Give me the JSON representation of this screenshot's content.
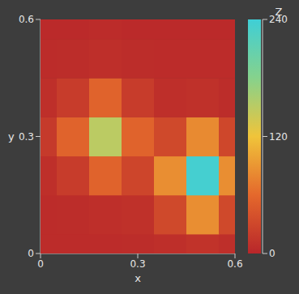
{
  "chart_data": {
    "type": "heatmap",
    "x_label": "x",
    "y_label": "y",
    "x": [
      0,
      0.1,
      0.2,
      0.3,
      0.4,
      0.5,
      0.6
    ],
    "y": [
      0,
      0.1,
      0.2,
      0.3,
      0.4,
      0.5,
      0.6
    ],
    "z": [
      [
        5,
        5,
        5,
        6,
        8,
        12,
        8
      ],
      [
        5,
        6,
        8,
        10,
        32,
        85,
        32
      ],
      [
        8,
        20,
        55,
        28,
        85,
        235,
        85
      ],
      [
        18,
        55,
        150,
        55,
        32,
        82,
        30
      ],
      [
        8,
        20,
        55,
        20,
        8,
        10,
        6
      ],
      [
        5,
        6,
        8,
        6,
        5,
        5,
        5
      ],
      [
        4,
        4,
        5,
        4,
        4,
        4,
        4
      ]
    ],
    "xlim": [
      0,
      0.6
    ],
    "ylim": [
      0,
      0.6
    ],
    "xticks": [
      0,
      0.3,
      0.6
    ],
    "yticks": [
      0,
      0.3,
      0.6
    ],
    "colorbar": {
      "label": "Z",
      "range": [
        0,
        240
      ],
      "ticks": [
        0,
        120,
        240
      ]
    }
  }
}
